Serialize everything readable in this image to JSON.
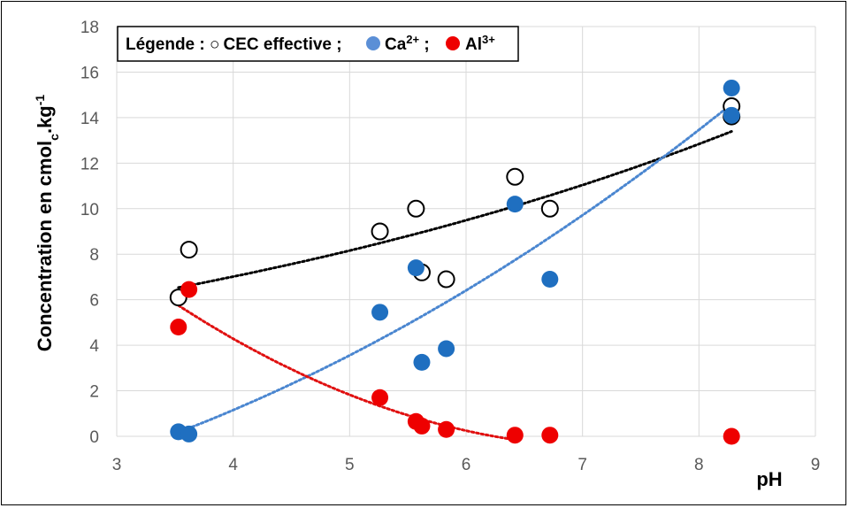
{
  "chart_data": {
    "type": "scatter",
    "xlabel": "pH",
    "ylabel": {
      "main": "Concentration en cmol",
      "sub": "c",
      "mid": ".kg",
      "sup": "-1"
    },
    "xlim": [
      3,
      9
    ],
    "ylim": [
      0,
      18
    ],
    "x_ticks": [
      3,
      4,
      5,
      6,
      7,
      8,
      9
    ],
    "y_ticks": [
      0,
      2,
      4,
      6,
      8,
      10,
      12,
      14,
      16,
      18
    ],
    "grid": true,
    "legend": {
      "position": "top-left",
      "prefix": "Légende : ",
      "entries": [
        {
          "marker": "○",
          "label": "CEC effective ;"
        },
        {
          "label_main": "Ca",
          "label_sup": "2+",
          "label_tail": " ;"
        },
        {
          "label_main": "Al",
          "label_sup": "3+"
        }
      ]
    },
    "series": [
      {
        "name": "CEC effective",
        "style": "open-circle",
        "color": "#000000",
        "points": [
          [
            3.53,
            6.1
          ],
          [
            3.62,
            8.2
          ],
          [
            5.26,
            9.0
          ],
          [
            5.57,
            10.0
          ],
          [
            5.62,
            7.2
          ],
          [
            5.83,
            6.9
          ],
          [
            6.42,
            11.4
          ],
          [
            6.72,
            10.0
          ],
          [
            8.28,
            14.5
          ],
          [
            8.28,
            14.05
          ]
        ],
        "trendline": {
          "type": "exponential",
          "color": "#000000",
          "from": 3.53,
          "to": 8.28
        }
      },
      {
        "name": "Ca2+",
        "style": "filled-circle",
        "color": "#1f6fc0",
        "points": [
          [
            3.53,
            0.2
          ],
          [
            3.62,
            0.1
          ],
          [
            5.26,
            5.45
          ],
          [
            5.57,
            7.4
          ],
          [
            5.62,
            3.25
          ],
          [
            5.83,
            3.85
          ],
          [
            6.42,
            10.2
          ],
          [
            6.72,
            6.9
          ],
          [
            8.28,
            15.3
          ],
          [
            8.28,
            14.1
          ]
        ],
        "trendline": {
          "type": "polynomial",
          "color": "#4a86d0",
          "from": 3.53,
          "to": 8.28
        }
      },
      {
        "name": "Al3+",
        "style": "filled-circle",
        "color": "#ee0000",
        "points": [
          [
            3.53,
            4.8
          ],
          [
            3.62,
            6.45
          ],
          [
            5.26,
            1.7
          ],
          [
            5.57,
            0.65
          ],
          [
            5.62,
            0.45
          ],
          [
            5.83,
            0.3
          ],
          [
            6.42,
            0.05
          ],
          [
            6.72,
            0.05
          ],
          [
            8.28,
            0.0
          ]
        ],
        "trendline": {
          "type": "polynomial",
          "color": "#e01010",
          "from": 3.53,
          "to": 6.42
        }
      }
    ]
  }
}
